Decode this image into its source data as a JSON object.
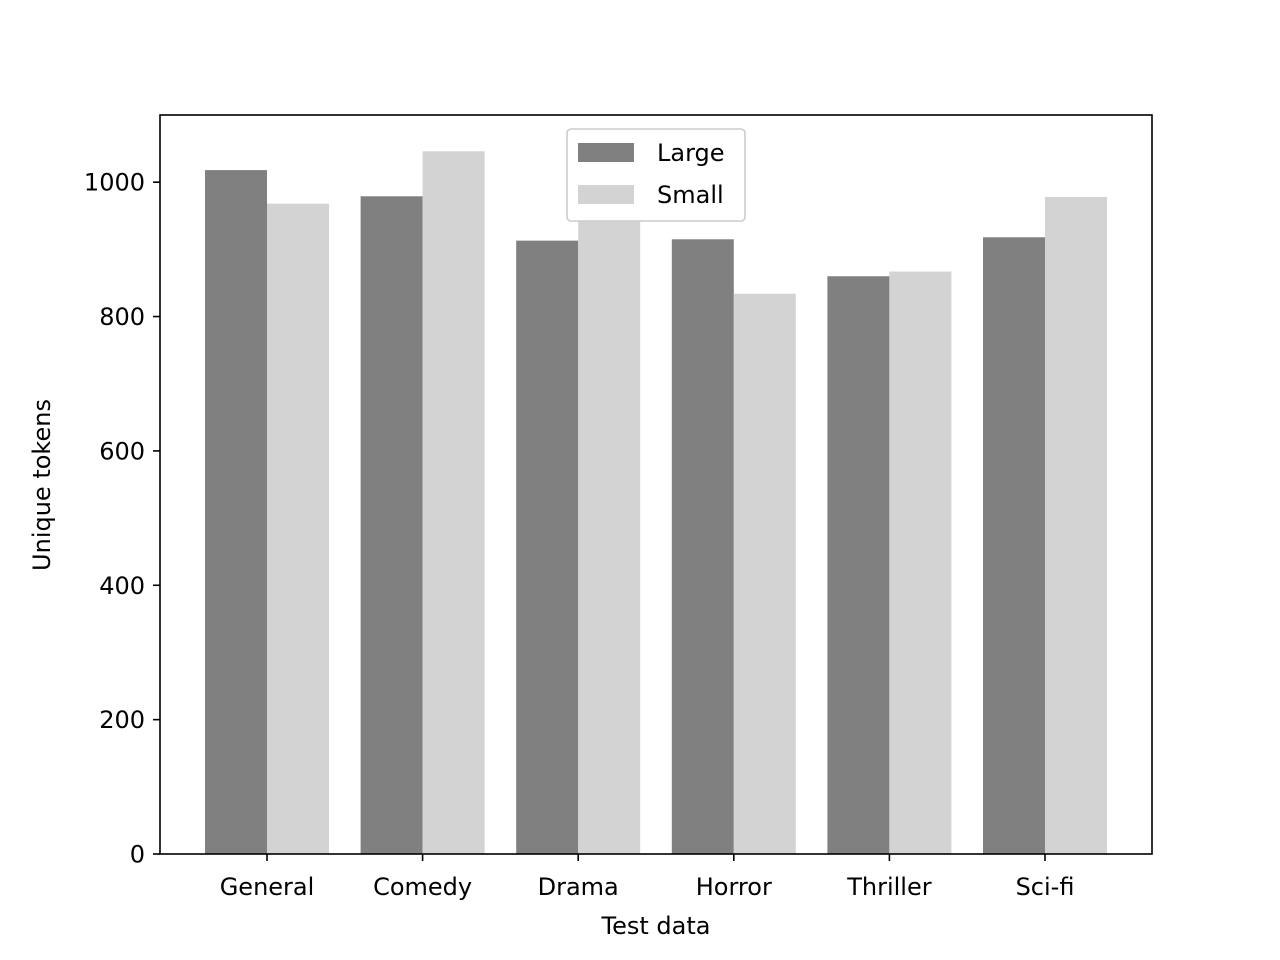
{
  "chart_data": {
    "type": "bar",
    "title": "",
    "xlabel": "Test data",
    "ylabel": "Unique tokens",
    "categories": [
      "General",
      "Comedy",
      "Drama",
      "Horror",
      "Thriller",
      "Sci-fi"
    ],
    "series": [
      {
        "name": "Large",
        "color": "#808080",
        "values": [
          1018,
          979,
          913,
          915,
          860,
          918
        ]
      },
      {
        "name": "Small",
        "color": "#d3d3d3",
        "values": [
          968,
          1046,
          945,
          834,
          867,
          978
        ]
      }
    ],
    "ylim": [
      0,
      1100
    ],
    "yticks": [
      0,
      200,
      400,
      600,
      800,
      1000
    ],
    "grid": false,
    "legend_position": "upper center"
  }
}
